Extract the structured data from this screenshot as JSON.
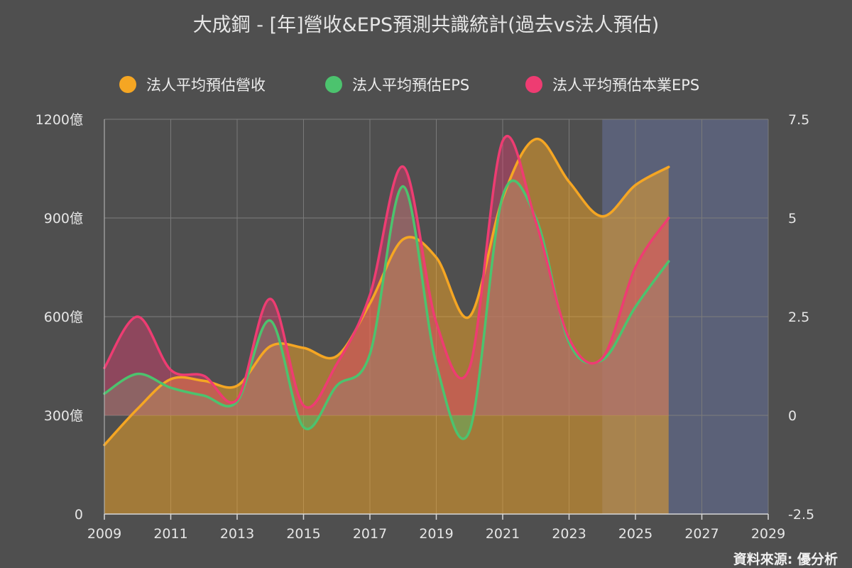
{
  "chart_data": {
    "type": "area",
    "title": "大成鋼 - [年]營收&EPS預測共識統計(過去vs法人預估)",
    "source": "資料來源: 優分析",
    "x_ticks": [
      "2009",
      "2011",
      "2013",
      "2015",
      "2017",
      "2019",
      "2021",
      "2023",
      "2025",
      "2027",
      "2029"
    ],
    "y_left_ticks": [
      "0",
      "300億",
      "600億",
      "900億",
      "1200億"
    ],
    "y_right_ticks": [
      "-2.5",
      "0",
      "2.5",
      "5",
      "7.5"
    ],
    "xlim": [
      2009,
      2029
    ],
    "y_left_range": [
      0,
      1200
    ],
    "y_right_range": [
      -2.5,
      7.5
    ],
    "forecast_region": [
      2024,
      2029
    ],
    "legend_position": "top",
    "series": [
      {
        "name": "法人平均預估營收",
        "axis": "left",
        "color": "#f5a623",
        "x": [
          2009,
          2010,
          2011,
          2012,
          2013,
          2014,
          2015,
          2016,
          2017,
          2018,
          2019,
          2020,
          2021,
          2022,
          2023,
          2024,
          2025,
          2026
        ],
        "values": [
          210,
          320,
          410,
          405,
          390,
          510,
          505,
          480,
          640,
          835,
          780,
          600,
          960,
          1140,
          1010,
          905,
          1000,
          1055
        ]
      },
      {
        "name": "法人平均預估EPS",
        "axis": "right",
        "color": "#4cc36e",
        "x": [
          2009,
          2010,
          2011,
          2012,
          2013,
          2014,
          2015,
          2016,
          2017,
          2018,
          2019,
          2020,
          2021,
          2022,
          2023,
          2024,
          2025,
          2026
        ],
        "values": [
          0.55,
          1.05,
          0.7,
          0.5,
          0.35,
          2.4,
          -0.3,
          0.75,
          1.55,
          5.8,
          1.3,
          -0.4,
          5.55,
          5.0,
          1.85,
          1.4,
          2.75,
          3.9
        ]
      },
      {
        "name": "法人平均預估本業EPS",
        "axis": "right",
        "color": "#ee3c72",
        "x": [
          2009,
          2010,
          2011,
          2012,
          2013,
          2014,
          2015,
          2016,
          2017,
          2018,
          2019,
          2020,
          2021,
          2022,
          2023,
          2024,
          2025,
          2026
        ],
        "values": [
          1.2,
          2.5,
          1.15,
          1.0,
          0.4,
          2.95,
          0.25,
          1.3,
          3.05,
          6.3,
          2.35,
          1.2,
          6.95,
          4.9,
          1.95,
          1.45,
          3.75,
          5.0
        ]
      }
    ]
  }
}
